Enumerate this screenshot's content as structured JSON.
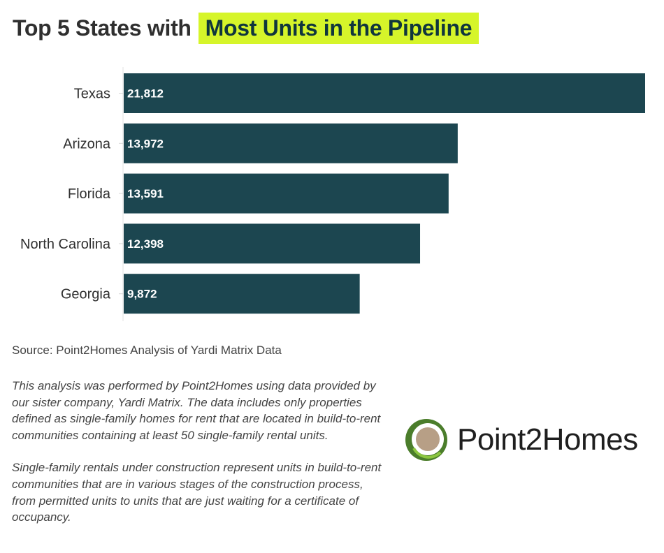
{
  "title": {
    "prefix": "Top 5 States with",
    "highlight": "Most Units in the Pipeline"
  },
  "colors": {
    "bar": "#1c4650",
    "highlight": "#d6f52a",
    "title_highlight_text": "#10363d",
    "logo_ring_green": "#4b7d2b",
    "logo_center": "#b79f86"
  },
  "chart_data": {
    "type": "bar",
    "orientation": "horizontal",
    "categories": [
      "Texas",
      "Arizona",
      "Florida",
      "North Carolina",
      "Georgia"
    ],
    "values": [
      21812,
      13972,
      13591,
      12398,
      9872
    ],
    "value_labels": [
      "21,812",
      "13,972",
      "13,591",
      "12,398",
      "9,872"
    ],
    "title": "",
    "xlabel": "",
    "ylabel": "",
    "xlim": [
      0,
      21812
    ],
    "grid": false,
    "legend": "none"
  },
  "source": "Source: Point2Homes Analysis of Yardi Matrix Data",
  "notes": [
    "This analysis was performed by Point2Homes using data provided by our sister company, Yardi Matrix. The data includes only properties defined as single-family homes for rent that are located in build-to-rent communities containing at least 50 single-family rental units.",
    "Single-family rentals under construction represent units in build-to-rent communities that are in various stages of the construction process, from permitted units to units that are just waiting for a certificate of occupancy."
  ],
  "logo": {
    "text": "Point2Homes",
    "icon": "point2homes-logo-icon"
  }
}
